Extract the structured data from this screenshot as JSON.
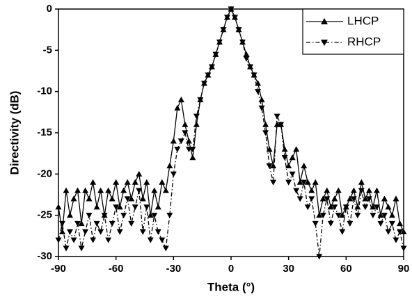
{
  "chart_data": {
    "type": "line",
    "x_label": "Theta (°)",
    "y_label": "Directivity (dB)",
    "x": [
      -90,
      -88,
      -86,
      -84,
      -82,
      -80,
      -78,
      -76,
      -74,
      -72,
      -70,
      -68,
      -66,
      -64,
      -62,
      -60,
      -58,
      -56,
      -54,
      -52,
      -50,
      -48,
      -46,
      -44,
      -42,
      -40,
      -38,
      -36,
      -34,
      -32,
      -30,
      -28,
      -26,
      -24,
      -22,
      -20,
      -18,
      -16,
      -14,
      -12,
      -10,
      -8,
      -6,
      -4,
      -2,
      0,
      2,
      4,
      6,
      8,
      10,
      12,
      14,
      16,
      18,
      20,
      22,
      24,
      26,
      28,
      30,
      32,
      34,
      36,
      38,
      40,
      42,
      44,
      46,
      48,
      50,
      52,
      54,
      56,
      58,
      60,
      62,
      64,
      66,
      68,
      70,
      72,
      74,
      76,
      78,
      80,
      82,
      84,
      86,
      88,
      90
    ],
    "series": [
      {
        "name": "LHCP",
        "color": "#000000",
        "dash": "solid",
        "marker": "up",
        "values": [
          -24,
          -27,
          -22,
          -25,
          -23,
          -22,
          -26,
          -22,
          -23,
          -21,
          -24,
          -22,
          -25,
          -22,
          -23,
          -21,
          -24,
          -22,
          -21,
          -23,
          -21,
          -20,
          -23,
          -21,
          -25,
          -22,
          -24,
          -21,
          -22,
          -19,
          -16,
          -12,
          -11,
          -14,
          -16,
          -18,
          -14,
          -11,
          -9,
          -8,
          -7,
          -5.5,
          -4,
          -2.5,
          -1,
          0,
          -1,
          -2.5,
          -4,
          -5.5,
          -7,
          -8,
          -9,
          -11,
          -14,
          -17,
          -19,
          -14,
          -14,
          -17,
          -19,
          -18,
          -17,
          -21,
          -19,
          -21,
          -22,
          -21,
          -25,
          -23,
          -22,
          -24,
          -23,
          -22,
          -25,
          -24,
          -23,
          -22,
          -24,
          -21,
          -23,
          -22,
          -24,
          -22,
          -25,
          -23,
          -24,
          -25,
          -23,
          -26,
          -27
        ]
      },
      {
        "name": "RHCP",
        "color": "#000000",
        "dash": "dashdot",
        "marker": "down",
        "values": [
          -28,
          -26,
          -29,
          -27,
          -28,
          -26,
          -29,
          -27,
          -25,
          -28,
          -26,
          -27,
          -25,
          -28,
          -26,
          -24,
          -27,
          -25,
          -23,
          -26,
          -24,
          -22,
          -27,
          -24,
          -28,
          -25,
          -27,
          -28,
          -29,
          -25,
          -20,
          -17,
          -16,
          -15,
          -17,
          -17,
          -13,
          -11,
          -9,
          -8,
          -7,
          -5.5,
          -4,
          -2.5,
          -1,
          0,
          -1,
          -2.5,
          -4,
          -6,
          -7,
          -8,
          -10,
          -12,
          -15,
          -19,
          -21,
          -13,
          -14,
          -18,
          -21,
          -20,
          -22,
          -23,
          -21,
          -24,
          -23,
          -26,
          -30,
          -25,
          -23,
          -26,
          -24,
          -25,
          -27,
          -24,
          -26,
          -23,
          -25,
          -22,
          -24,
          -23,
          -25,
          -24,
          -26,
          -25,
          -27,
          -26,
          -28,
          -27,
          -29
        ]
      }
    ],
    "xlim": [
      -90,
      90
    ],
    "xticks": [
      -90,
      -60,
      -30,
      0,
      30,
      60,
      90
    ],
    "ylim": [
      -30,
      0
    ],
    "yticks": [
      -30,
      -25,
      -20,
      -15,
      -10,
      -5,
      0
    ],
    "legend": "upper right"
  }
}
